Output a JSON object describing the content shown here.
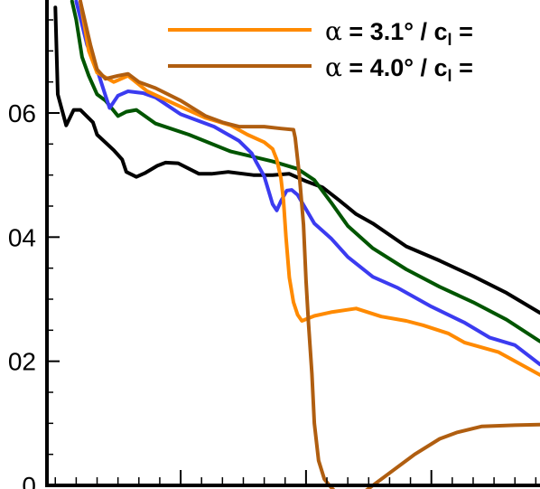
{
  "chart_data": {
    "type": "line",
    "title": "",
    "xlabel": "",
    "ylabel": "",
    "xlim": [
      0.04,
      0.63
    ],
    "ylim": [
      0.0,
      0.078
    ],
    "y_ticks": [
      {
        "value": 0.06,
        "label": "06"
      },
      {
        "value": 0.04,
        "label": "04"
      },
      {
        "value": 0.02,
        "label": "02"
      },
      {
        "value": 0.0,
        "label": "0"
      }
    ],
    "x_major_ticks": [
      0.2,
      0.35,
      0.5
    ],
    "legend": {
      "position": "top-right",
      "entries": [
        {
          "series": "s4",
          "alpha_symbol": "α",
          "text": " = 3.1° / c",
          "subscript": "l",
          "tail": " ="
        },
        {
          "series": "s5",
          "alpha_symbol": "α",
          "text": " = 4.0° / c",
          "subscript": "l",
          "tail": " ="
        }
      ]
    },
    "series": [
      {
        "id": "s1",
        "color": "#000000",
        "values": [
          [
            0.05,
            0.077
          ],
          [
            0.053,
            0.063
          ],
          [
            0.057,
            0.061
          ],
          [
            0.063,
            0.058
          ],
          [
            0.072,
            0.0605
          ],
          [
            0.08,
            0.0605
          ],
          [
            0.095,
            0.0585
          ],
          [
            0.1,
            0.0565
          ],
          [
            0.12,
            0.054
          ],
          [
            0.13,
            0.0525
          ],
          [
            0.135,
            0.0505
          ],
          [
            0.147,
            0.0497
          ],
          [
            0.157,
            0.0503
          ],
          [
            0.172,
            0.0515
          ],
          [
            0.182,
            0.052
          ],
          [
            0.197,
            0.0519
          ],
          [
            0.222,
            0.0502
          ],
          [
            0.237,
            0.0502
          ],
          [
            0.257,
            0.0505
          ],
          [
            0.287,
            0.05
          ],
          [
            0.31,
            0.05
          ],
          [
            0.33,
            0.0502
          ],
          [
            0.35,
            0.049
          ],
          [
            0.37,
            0.048
          ],
          [
            0.39,
            0.0459
          ],
          [
            0.41,
            0.0437
          ],
          [
            0.43,
            0.0422
          ],
          [
            0.47,
            0.0385
          ],
          [
            0.51,
            0.0362
          ],
          [
            0.55,
            0.0337
          ],
          [
            0.59,
            0.031
          ],
          [
            0.63,
            0.0278
          ]
        ]
      },
      {
        "id": "s2",
        "color": "#005500",
        "values": [
          [
            0.07,
            0.078
          ],
          [
            0.075,
            0.075
          ],
          [
            0.082,
            0.069
          ],
          [
            0.09,
            0.066
          ],
          [
            0.1,
            0.063
          ],
          [
            0.11,
            0.062
          ],
          [
            0.125,
            0.0595
          ],
          [
            0.135,
            0.0602
          ],
          [
            0.147,
            0.0605
          ],
          [
            0.17,
            0.0583
          ],
          [
            0.21,
            0.0565
          ],
          [
            0.26,
            0.0538
          ],
          [
            0.31,
            0.0522
          ],
          [
            0.34,
            0.051
          ],
          [
            0.36,
            0.0492
          ],
          [
            0.38,
            0.0456
          ],
          [
            0.4,
            0.0418
          ],
          [
            0.43,
            0.0382
          ],
          [
            0.47,
            0.0348
          ],
          [
            0.51,
            0.032
          ],
          [
            0.55,
            0.0295
          ],
          [
            0.59,
            0.0267
          ],
          [
            0.63,
            0.0232
          ]
        ]
      },
      {
        "id": "s3",
        "color": "#3b3bf0",
        "values": [
          [
            0.075,
            0.078
          ],
          [
            0.088,
            0.071
          ],
          [
            0.1,
            0.067
          ],
          [
            0.11,
            0.0628
          ],
          [
            0.115,
            0.0608
          ],
          [
            0.125,
            0.0628
          ],
          [
            0.137,
            0.0635
          ],
          [
            0.155,
            0.0632
          ],
          [
            0.17,
            0.0625
          ],
          [
            0.2,
            0.0598
          ],
          [
            0.24,
            0.0578
          ],
          [
            0.27,
            0.0555
          ],
          [
            0.285,
            0.0535
          ],
          [
            0.29,
            0.0522
          ],
          [
            0.3,
            0.0498
          ],
          [
            0.31,
            0.0453
          ],
          [
            0.315,
            0.0443
          ],
          [
            0.32,
            0.0458
          ],
          [
            0.327,
            0.0475
          ],
          [
            0.333,
            0.0476
          ],
          [
            0.34,
            0.0468
          ],
          [
            0.36,
            0.0422
          ],
          [
            0.38,
            0.0398
          ],
          [
            0.4,
            0.0368
          ],
          [
            0.43,
            0.0336
          ],
          [
            0.46,
            0.0318
          ],
          [
            0.5,
            0.0288
          ],
          [
            0.54,
            0.0262
          ],
          [
            0.57,
            0.0238
          ],
          [
            0.6,
            0.0226
          ],
          [
            0.63,
            0.0195
          ]
        ]
      },
      {
        "id": "s4",
        "color": "#ff8a00",
        "values": [
          [
            0.08,
            0.078
          ],
          [
            0.09,
            0.07
          ],
          [
            0.1,
            0.0665
          ],
          [
            0.12,
            0.065
          ],
          [
            0.137,
            0.066
          ],
          [
            0.16,
            0.0635
          ],
          [
            0.2,
            0.061
          ],
          [
            0.23,
            0.0592
          ],
          [
            0.26,
            0.058
          ],
          [
            0.28,
            0.0565
          ],
          [
            0.3,
            0.0553
          ],
          [
            0.31,
            0.0542
          ],
          [
            0.315,
            0.0525
          ],
          [
            0.32,
            0.0495
          ],
          [
            0.323,
            0.046
          ],
          [
            0.326,
            0.04
          ],
          [
            0.33,
            0.0335
          ],
          [
            0.335,
            0.0295
          ],
          [
            0.34,
            0.0275
          ],
          [
            0.345,
            0.0265
          ],
          [
            0.36,
            0.0273
          ],
          [
            0.38,
            0.0279
          ],
          [
            0.41,
            0.0285
          ],
          [
            0.44,
            0.0272
          ],
          [
            0.47,
            0.0265
          ],
          [
            0.49,
            0.0258
          ],
          [
            0.52,
            0.0245
          ],
          [
            0.54,
            0.023
          ],
          [
            0.58,
            0.0215
          ],
          [
            0.63,
            0.0178
          ]
        ]
      },
      {
        "id": "s5",
        "color": "#b05e10",
        "values": [
          [
            0.08,
            0.078
          ],
          [
            0.092,
            0.071
          ],
          [
            0.1,
            0.067
          ],
          [
            0.11,
            0.0655
          ],
          [
            0.125,
            0.066
          ],
          [
            0.137,
            0.0663
          ],
          [
            0.15,
            0.065
          ],
          [
            0.17,
            0.064
          ],
          [
            0.2,
            0.062
          ],
          [
            0.23,
            0.0595
          ],
          [
            0.25,
            0.0585
          ],
          [
            0.27,
            0.0578
          ],
          [
            0.3,
            0.0578
          ],
          [
            0.32,
            0.0575
          ],
          [
            0.335,
            0.0573
          ],
          [
            0.337,
            0.056
          ],
          [
            0.342,
            0.05
          ],
          [
            0.347,
            0.042
          ],
          [
            0.35,
            0.033
          ],
          [
            0.353,
            0.026
          ],
          [
            0.357,
            0.018
          ],
          [
            0.36,
            0.01
          ],
          [
            0.365,
            0.004
          ],
          [
            0.372,
            0.001
          ],
          [
            0.378,
            0.0
          ],
          [
            0.395,
            -0.0025
          ],
          [
            0.42,
            -0.001
          ],
          [
            0.45,
            0.002
          ],
          [
            0.48,
            0.005
          ],
          [
            0.51,
            0.0075
          ],
          [
            0.53,
            0.0085
          ],
          [
            0.56,
            0.0095
          ],
          [
            0.6,
            0.0097
          ],
          [
            0.63,
            0.0098
          ]
        ]
      }
    ],
    "grid": false
  }
}
